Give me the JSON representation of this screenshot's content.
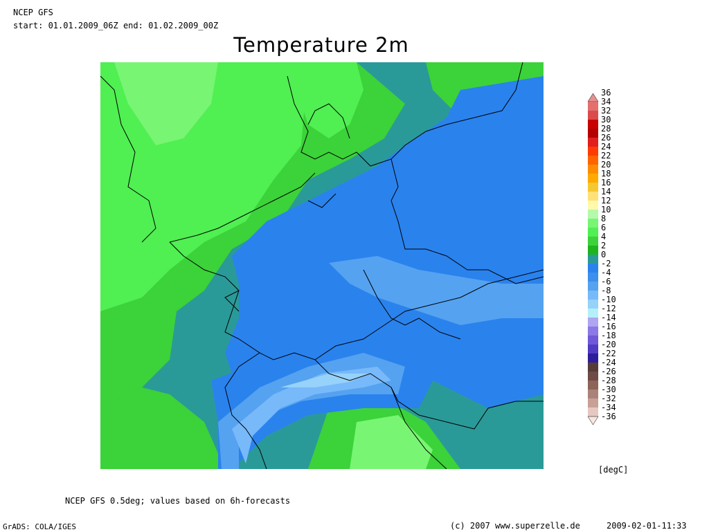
{
  "header": {
    "model": "NCEP GFS",
    "period": "start: 01.01.2009_06Z end: 01.02.2009_00Z"
  },
  "title": "Temperature 2m",
  "legend": {
    "units": "[degC]",
    "levels": [
      {
        "label": "36",
        "color": "#e88f8f"
      },
      {
        "label": "34",
        "color": "#e36f6f"
      },
      {
        "label": "32",
        "color": "#dc4b4b"
      },
      {
        "label": "30",
        "color": "#c80000"
      },
      {
        "label": "28",
        "color": "#b40000"
      },
      {
        "label": "26",
        "color": "#e11e1e"
      },
      {
        "label": "24",
        "color": "#ff3c00"
      },
      {
        "label": "22",
        "color": "#ff6400"
      },
      {
        "label": "20",
        "color": "#ff8c00"
      },
      {
        "label": "18",
        "color": "#ffaa00"
      },
      {
        "label": "16",
        "color": "#f5c832"
      },
      {
        "label": "14",
        "color": "#ffe178"
      },
      {
        "label": "12",
        "color": "#fffaaa"
      },
      {
        "label": "10",
        "color": "#b4faaa"
      },
      {
        "label": "8",
        "color": "#78f573"
      },
      {
        "label": "6",
        "color": "#50ef52"
      },
      {
        "label": "4",
        "color": "#3cd23a"
      },
      {
        "label": "2",
        "color": "#1eb41e"
      },
      {
        "label": "0",
        "color": "#2a9a98"
      },
      {
        "label": "-2",
        "color": "#2a82ed"
      },
      {
        "label": "-4",
        "color": "#3c8fec"
      },
      {
        "label": "-6",
        "color": "#55a2f0"
      },
      {
        "label": "-8",
        "color": "#78b9fa"
      },
      {
        "label": "-10",
        "color": "#96d2fa"
      },
      {
        "label": "-12",
        "color": "#b4f0fa"
      },
      {
        "label": "-14",
        "color": "#afa5f0"
      },
      {
        "label": "-16",
        "color": "#8c78e6"
      },
      {
        "label": "-18",
        "color": "#7058d8"
      },
      {
        "label": "-20",
        "color": "#503cc3"
      },
      {
        "label": "-22",
        "color": "#2d1e9b"
      },
      {
        "label": "-24",
        "color": "#553c37"
      },
      {
        "label": "-26",
        "color": "#6e4b46"
      },
      {
        "label": "-28",
        "color": "#8c6458"
      },
      {
        "label": "-30",
        "color": "#aa827a"
      },
      {
        "label": "-32",
        "color": "#c8a096"
      },
      {
        "label": "-34",
        "color": "#e6c8c3"
      },
      {
        "label": "-36",
        "color": "#f7e6e1"
      }
    ]
  },
  "footer": {
    "note": "NCEP GFS 0.5deg; values based on 6h-forecasts",
    "grads": "GrADS: COLA/IGES",
    "copyright": "(c) 2007 www.superzelle.de",
    "timestamp": "2009-02-01-11:33"
  }
}
